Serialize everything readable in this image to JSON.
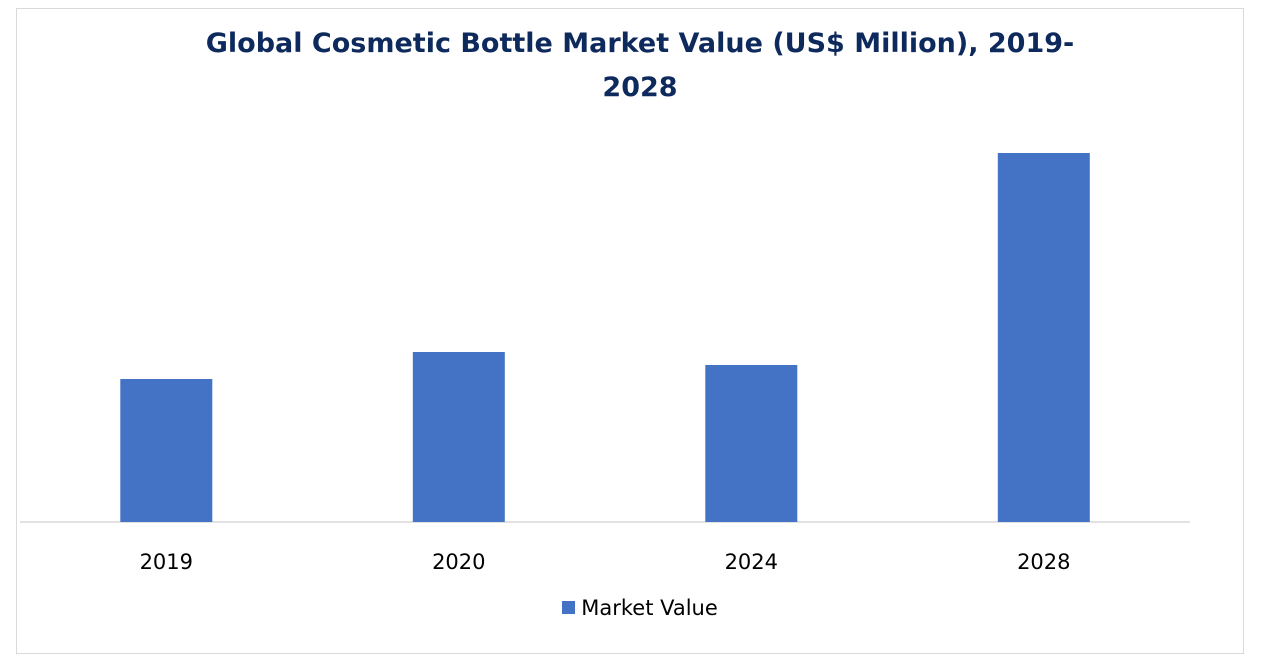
{
  "chart_data": {
    "type": "bar",
    "title": "Global Cosmetic Bottle Market Value (US$ Million), 2019-2028",
    "title_lines": [
      "Global Cosmetic Bottle Market Value (US$ Million), 2019-",
      "2028"
    ],
    "categories": [
      "2019",
      "2020",
      "2024",
      "2028"
    ],
    "series": [
      {
        "name": "Market Value",
        "values": [
          143,
          170,
          157,
          369
        ],
        "color": "#4472c4"
      }
    ],
    "ylim": [
      0,
      400
    ],
    "grid": false,
    "legend": "bottom"
  }
}
